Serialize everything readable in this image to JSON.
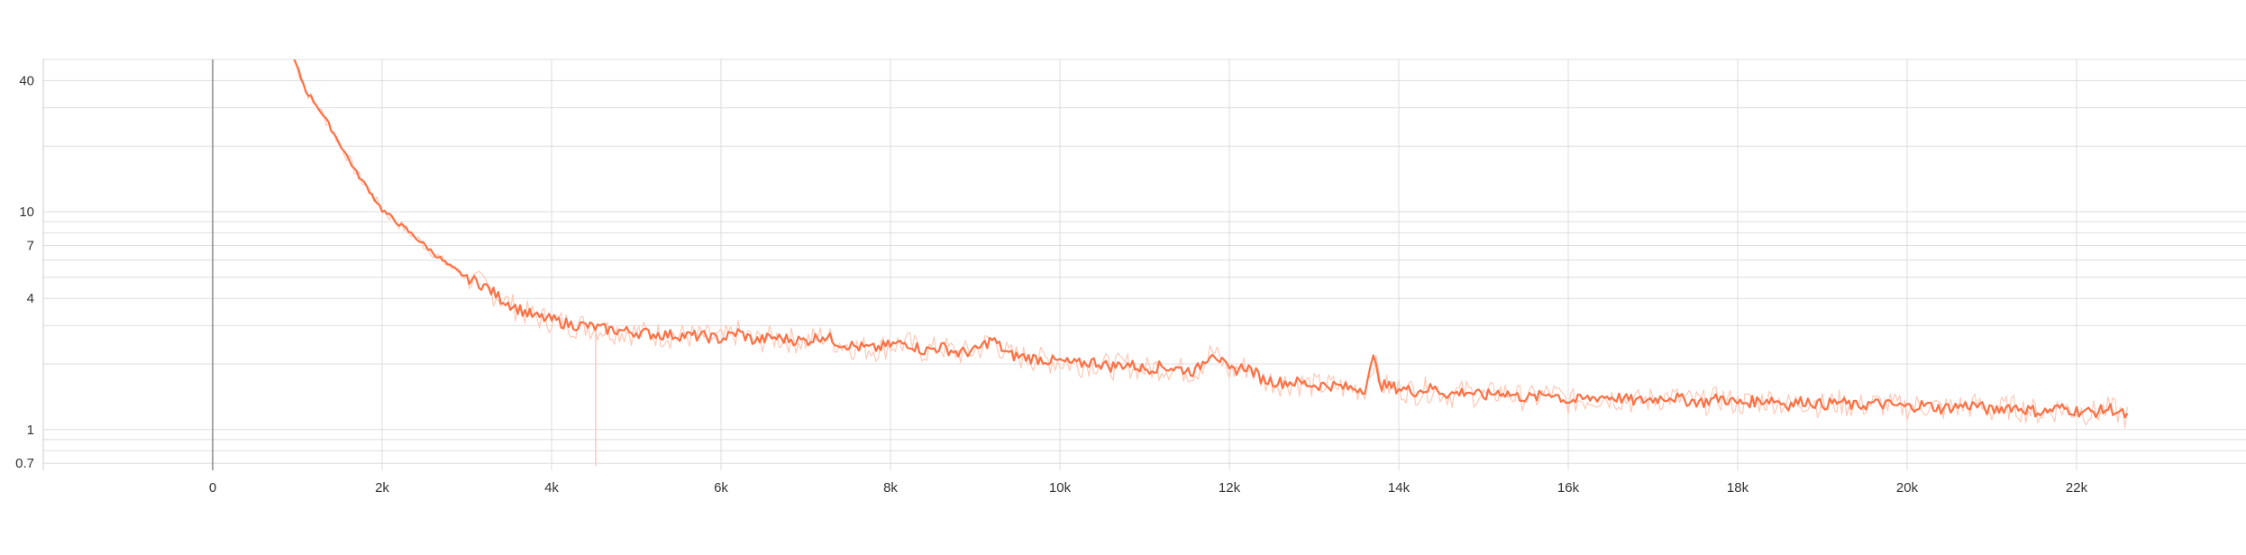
{
  "chart_data": {
    "type": "line",
    "title": "",
    "xlabel": "",
    "ylabel": "",
    "y_scale": "log",
    "grid": true,
    "xlim": [
      -2000,
      24000
    ],
    "ylim": [
      0.65,
      50
    ],
    "x_ticks": [
      {
        "value": 0,
        "label": "0"
      },
      {
        "value": 2000,
        "label": "2k"
      },
      {
        "value": 4000,
        "label": "4k"
      },
      {
        "value": 6000,
        "label": "6k"
      },
      {
        "value": 8000,
        "label": "8k"
      },
      {
        "value": 10000,
        "label": "10k"
      },
      {
        "value": 12000,
        "label": "12k"
      },
      {
        "value": 14000,
        "label": "14k"
      },
      {
        "value": 16000,
        "label": "16k"
      },
      {
        "value": 18000,
        "label": "18k"
      },
      {
        "value": 20000,
        "label": "20k"
      },
      {
        "value": 22000,
        "label": "22k"
      }
    ],
    "y_ticks": [
      {
        "value": 0.7,
        "label": "0.7"
      },
      {
        "value": 1,
        "label": "1"
      },
      {
        "value": 4,
        "label": "4"
      },
      {
        "value": 7,
        "label": "7"
      },
      {
        "value": 10,
        "label": "10"
      },
      {
        "value": 40,
        "label": "40"
      }
    ],
    "y_minor_grid": [
      0.8,
      0.9,
      2,
      3,
      5,
      6,
      8,
      9,
      20,
      30
    ],
    "series": [
      {
        "color": "#ff7043",
        "raw_color": "#ffc9b8",
        "x": [
          960,
          1100,
          1250,
          1400,
          1550,
          1700,
          1850,
          2000,
          2200,
          2400,
          2600,
          2800,
          3000,
          3200,
          3400,
          3600,
          3800,
          4000,
          4200,
          4400,
          4600,
          4800,
          5000,
          5200,
          5400,
          5600,
          5800,
          6000,
          6200,
          6400,
          6600,
          6800,
          7000,
          7200,
          7400,
          7600,
          7800,
          8000,
          8200,
          8400,
          8600,
          8800,
          9000,
          9200,
          9400,
          9600,
          9800,
          10000,
          10200,
          10400,
          10600,
          10800,
          11000,
          11200,
          11400,
          11600,
          11800,
          12000,
          12200,
          12400,
          12600,
          12800,
          13000,
          13200,
          13400,
          13600,
          13700,
          13800,
          14000,
          14200,
          14400,
          14600,
          14800,
          15000,
          15200,
          15400,
          15600,
          15800,
          16000,
          16200,
          16400,
          16600,
          16800,
          17000,
          17200,
          17400,
          17600,
          17800,
          18000,
          18200,
          18400,
          18600,
          18800,
          19000,
          19200,
          19400,
          19600,
          19800,
          20000,
          20200,
          20400,
          20600,
          20800,
          21000,
          21200,
          21400,
          21600,
          21800,
          22000,
          22200,
          22400,
          22600
        ],
        "values": [
          50,
          36,
          30,
          24,
          19,
          15,
          12.5,
          10.2,
          8.8,
          7.6,
          6.5,
          5.6,
          5.0,
          4.6,
          4.0,
          3.6,
          3.3,
          3.2,
          3.05,
          3.0,
          2.9,
          2.85,
          2.8,
          2.75,
          2.72,
          2.7,
          2.68,
          2.6,
          2.8,
          2.55,
          2.65,
          2.6,
          2.55,
          2.7,
          2.5,
          2.4,
          2.35,
          2.45,
          2.5,
          2.3,
          2.4,
          2.25,
          2.3,
          2.6,
          2.2,
          2.15,
          2.1,
          2.05,
          2.0,
          2.05,
          1.95,
          2.0,
          1.9,
          1.95,
          1.9,
          1.85,
          2.3,
          1.85,
          1.95,
          1.7,
          1.65,
          1.65,
          1.6,
          1.6,
          1.55,
          1.55,
          2.1,
          1.6,
          1.55,
          1.5,
          1.55,
          1.45,
          1.5,
          1.42,
          1.5,
          1.42,
          1.4,
          1.48,
          1.35,
          1.38,
          1.42,
          1.4,
          1.35,
          1.38,
          1.42,
          1.36,
          1.34,
          1.4,
          1.32,
          1.35,
          1.38,
          1.3,
          1.36,
          1.3,
          1.34,
          1.28,
          1.32,
          1.3,
          1.27,
          1.3,
          1.25,
          1.28,
          1.3,
          1.22,
          1.28,
          1.24,
          1.2,
          1.26,
          1.22,
          1.2,
          1.25,
          1.15
        ]
      }
    ]
  }
}
